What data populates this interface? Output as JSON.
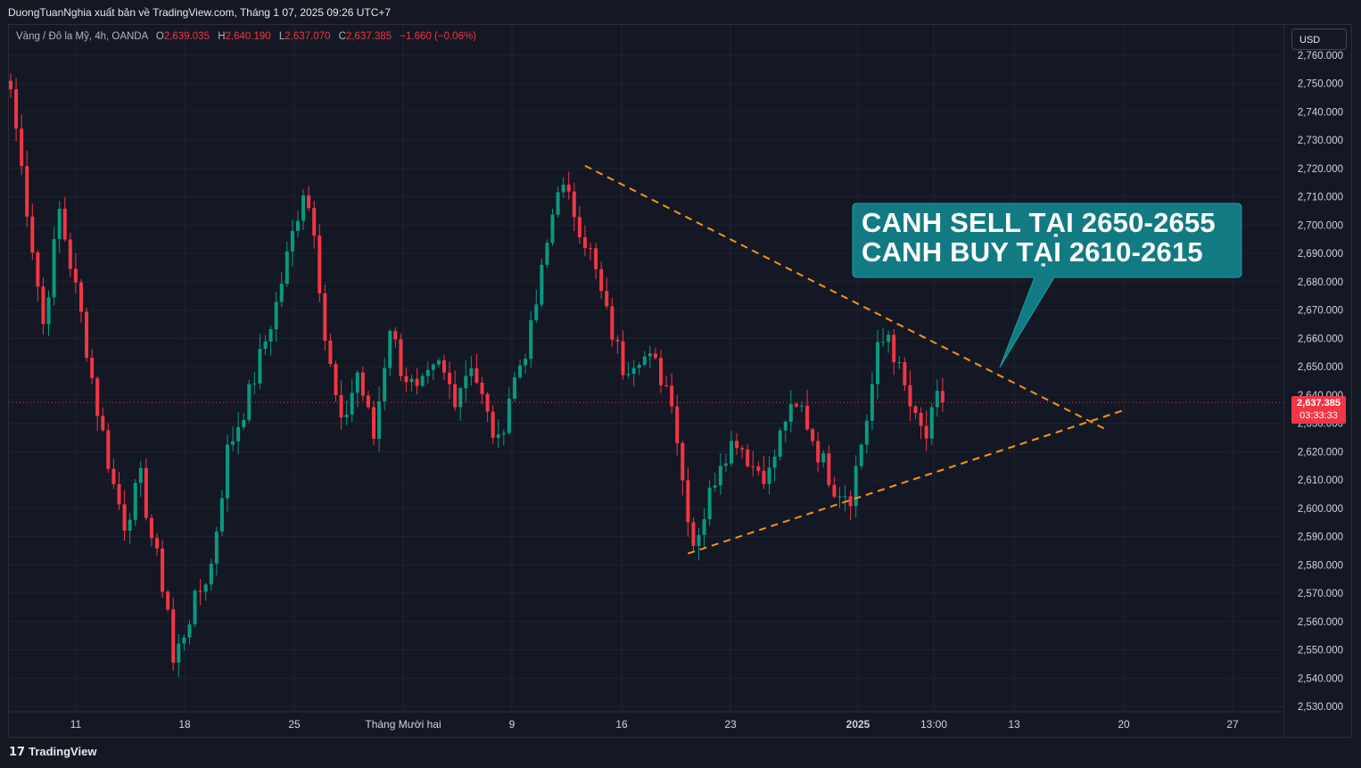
{
  "publisher_line": "DuongTuanNghia xuất bản về TradingView.com, Tháng 1 07, 2025 09:26 UTC+7",
  "legend": {
    "symbol": "Vàng / Đô la Mỹ, 4h, OANDA",
    "o_label": "O",
    "o_value": "2,639.035",
    "h_label": "H",
    "h_value": "2,640.190",
    "l_label": "L",
    "l_value": "2,637.070",
    "c_label": "C",
    "c_value": "2,637.385",
    "change": "−1.660 (−0.06%)"
  },
  "currency_button": "USD",
  "current_price": {
    "value": "2,637.385",
    "countdown": "03:33:33"
  },
  "footer_brand": "TradingView",
  "callout": {
    "line1": "CANH SELL TẠI 2650-2655",
    "line2": "CANH BUY TẠI 2610-2615"
  },
  "colors": {
    "up": "#089981",
    "down": "#f23645",
    "trendline": "#f7931a",
    "callout_bg": "#127a82",
    "background": "#141824"
  },
  "chart_data": {
    "type": "candlestick",
    "y_axis": {
      "min": 2530,
      "max": 2760,
      "ticks": [
        "2,760.000",
        "2,750.000",
        "2,740.000",
        "2,730.000",
        "2,720.000",
        "2,710.000",
        "2,700.000",
        "2,690.000",
        "2,680.000",
        "2,670.000",
        "2,660.000",
        "2,650.000",
        "2,640.000",
        "2,630.000",
        "2,620.000",
        "2,610.000",
        "2,600.000",
        "2,590.000",
        "2,580.000",
        "2,570.000",
        "2,560.000",
        "2,550.000",
        "2,540.000",
        "2,530.000"
      ]
    },
    "x_axis": {
      "ticks": [
        {
          "label": "11",
          "bold": false
        },
        {
          "label": "18",
          "bold": false
        },
        {
          "label": "25",
          "bold": false
        },
        {
          "label": "Tháng Mười hai",
          "bold": false
        },
        {
          "label": "9",
          "bold": false
        },
        {
          "label": "16",
          "bold": false
        },
        {
          "label": "23",
          "bold": false
        },
        {
          "label": "2025",
          "bold": true
        },
        {
          "label": "13:00",
          "bold": false
        },
        {
          "label": "13",
          "bold": false
        },
        {
          "label": "20",
          "bold": false
        },
        {
          "label": "27",
          "bold": false
        }
      ]
    },
    "last_price": 2637.385,
    "anchors": [
      {
        "idx": 0,
        "price": 2748
      },
      {
        "idx": 6,
        "price": 2665
      },
      {
        "idx": 9,
        "price": 2705
      },
      {
        "idx": 13,
        "price": 2668
      },
      {
        "idx": 16,
        "price": 2635
      },
      {
        "idx": 19,
        "price": 2608
      },
      {
        "idx": 21,
        "price": 2595
      },
      {
        "idx": 24,
        "price": 2610
      },
      {
        "idx": 26,
        "price": 2590
      },
      {
        "idx": 29,
        "price": 2565
      },
      {
        "idx": 30,
        "price": 2545
      },
      {
        "idx": 33,
        "price": 2562
      },
      {
        "idx": 37,
        "price": 2580
      },
      {
        "idx": 40,
        "price": 2620
      },
      {
        "idx": 44,
        "price": 2640
      },
      {
        "idx": 49,
        "price": 2672
      },
      {
        "idx": 54,
        "price": 2713
      },
      {
        "idx": 56,
        "price": 2700
      },
      {
        "idx": 58,
        "price": 2660
      },
      {
        "idx": 61,
        "price": 2628
      },
      {
        "idx": 64,
        "price": 2648
      },
      {
        "idx": 67,
        "price": 2625
      },
      {
        "idx": 70,
        "price": 2665
      },
      {
        "idx": 72,
        "price": 2650
      },
      {
        "idx": 75,
        "price": 2640
      },
      {
        "idx": 79,
        "price": 2650
      },
      {
        "idx": 82,
        "price": 2640
      },
      {
        "idx": 85,
        "price": 2652
      },
      {
        "idx": 88,
        "price": 2632
      },
      {
        "idx": 90,
        "price": 2622
      },
      {
        "idx": 92,
        "price": 2640
      },
      {
        "idx": 96,
        "price": 2662
      },
      {
        "idx": 99,
        "price": 2693
      },
      {
        "idx": 101,
        "price": 2715
      },
      {
        "idx": 104,
        "price": 2705
      },
      {
        "idx": 107,
        "price": 2690
      },
      {
        "idx": 110,
        "price": 2668
      },
      {
        "idx": 113,
        "price": 2650
      },
      {
        "idx": 116,
        "price": 2655
      },
      {
        "idx": 119,
        "price": 2650
      },
      {
        "idx": 122,
        "price": 2640
      },
      {
        "idx": 124,
        "price": 2610
      },
      {
        "idx": 126,
        "price": 2588
      },
      {
        "idx": 128,
        "price": 2598
      },
      {
        "idx": 131,
        "price": 2618
      },
      {
        "idx": 134,
        "price": 2625
      },
      {
        "idx": 137,
        "price": 2615
      },
      {
        "idx": 140,
        "price": 2612
      },
      {
        "idx": 143,
        "price": 2632
      },
      {
        "idx": 146,
        "price": 2635
      },
      {
        "idx": 149,
        "price": 2620
      },
      {
        "idx": 152,
        "price": 2608
      },
      {
        "idx": 155,
        "price": 2605
      },
      {
        "idx": 158,
        "price": 2632
      },
      {
        "idx": 160,
        "price": 2655
      },
      {
        "idx": 162,
        "price": 2662
      },
      {
        "idx": 164,
        "price": 2648
      },
      {
        "idx": 167,
        "price": 2630
      },
      {
        "idx": 169,
        "price": 2625
      },
      {
        "idx": 171,
        "price": 2638
      },
      {
        "idx": 172,
        "price": 2637.385
      }
    ],
    "trendlines": [
      {
        "name": "upper",
        "from": {
          "idx": 106,
          "price": 2721
        },
        "to": {
          "idx": 202,
          "price": 2628
        }
      },
      {
        "name": "lower",
        "from": {
          "idx": 125,
          "price": 2584
        },
        "to": {
          "idx": 206,
          "price": 2635
        }
      }
    ]
  }
}
